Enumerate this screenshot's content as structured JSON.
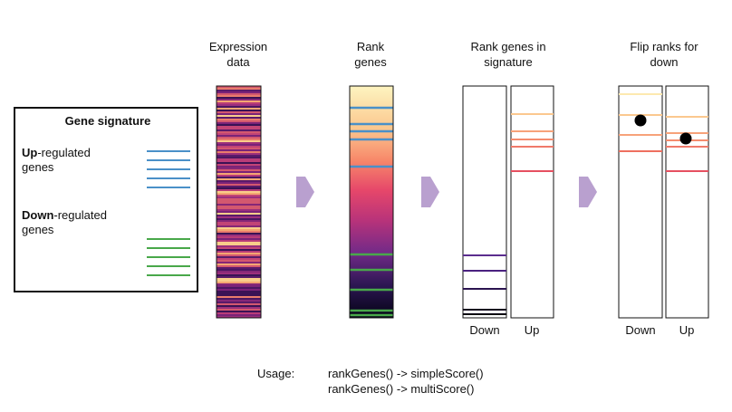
{
  "columns": {
    "expression": {
      "line1": "Expression",
      "line2": "data"
    },
    "rank": {
      "line1": "Rank",
      "line2": "genes"
    },
    "signature": {
      "line1": "Rank genes in",
      "line2": "signature"
    },
    "flip": {
      "line1": "Flip ranks for",
      "line2": "down"
    }
  },
  "gene_signature": {
    "title": "Gene signature",
    "up_bold": "Up",
    "up_rest": "-regulated",
    "up_line2": "genes",
    "down_bold": "Down",
    "down_rest": "-regulated",
    "down_line2": "genes"
  },
  "panel_labels": {
    "down": "Down",
    "up": "Up"
  },
  "usage": {
    "label": "Usage:",
    "line1": "rankGenes() -> simpleScore()",
    "line2": "rankGenes() -> multiScore()"
  },
  "colors": {
    "up_gene": "#4a90c8",
    "down_gene": "#49a84a",
    "arrow": "#b9a0cf",
    "outline": "#111111"
  }
}
